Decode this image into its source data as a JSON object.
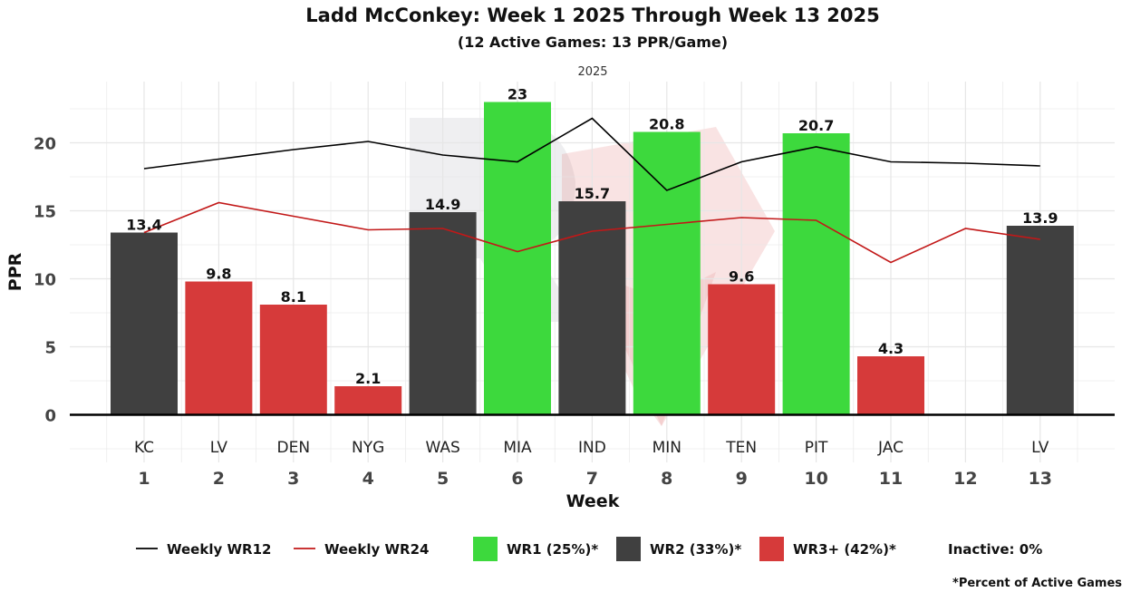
{
  "chart_data": {
    "type": "bar",
    "title": "Ladd McConkey: Week 1 2025 Through Week 13 2025",
    "subtitle": "(12 Active Games: 13 PPR/Game)",
    "facet_label": "2025",
    "xlabel": "Week",
    "ylabel": "PPR",
    "ylim": [
      -3.5,
      24.5
    ],
    "yticks": [
      0,
      5,
      10,
      15,
      20
    ],
    "weeks": [
      1,
      2,
      3,
      4,
      5,
      6,
      7,
      8,
      9,
      10,
      11,
      12,
      13
    ],
    "opponents": [
      "KC",
      "LV",
      "DEN",
      "NYG",
      "WAS",
      "MIA",
      "IND",
      "MIN",
      "TEN",
      "PIT",
      "JAC",
      "",
      "LV"
    ],
    "values": [
      13.4,
      9.8,
      8.1,
      2.1,
      14.9,
      23,
      15.7,
      20.8,
      9.6,
      20.7,
      4.3,
      null,
      13.9
    ],
    "value_labels": [
      "13.4",
      "9.8",
      "8.1",
      "2.1",
      "14.9",
      "23",
      "15.7",
      "20.8",
      "9.6",
      "20.7",
      "4.3",
      "",
      "13.9"
    ],
    "tiers": [
      "WR2",
      "WR3+",
      "WR3+",
      "WR3+",
      "WR2",
      "WR1",
      "WR2",
      "WR1",
      "WR3+",
      "WR1",
      "WR3+",
      "Inactive",
      "WR2"
    ],
    "series": [
      {
        "name": "Weekly WR12",
        "values": [
          18.1,
          18.8,
          19.5,
          20.1,
          19.1,
          18.6,
          21.8,
          16.5,
          18.6,
          19.7,
          18.6,
          18.5,
          18.3
        ]
      },
      {
        "name": "Weekly WR24",
        "values": [
          13.4,
          15.6,
          14.6,
          13.6,
          13.7,
          12.0,
          13.5,
          14.0,
          14.5,
          14.3,
          11.2,
          13.7,
          12.9
        ]
      }
    ],
    "colors": {
      "WR1": "#3dd93d",
      "WR2": "#404040",
      "WR3+": "#d63a3a",
      "Weekly WR12": "#000000",
      "Weekly WR24": "#c21818",
      "grid": "#e6e6e6"
    },
    "legend": {
      "line_items": [
        "Weekly WR12",
        "Weekly WR24"
      ],
      "tier_items": [
        {
          "tier": "WR1",
          "label": "WR1 (25%)*"
        },
        {
          "tier": "WR2",
          "label": "WR2 (33%)*"
        },
        {
          "tier": "WR3+",
          "label": "WR3+ (42%)*"
        }
      ],
      "inactive_label": "Inactive: 0%"
    },
    "footnote": "*Percent of Active Games"
  }
}
